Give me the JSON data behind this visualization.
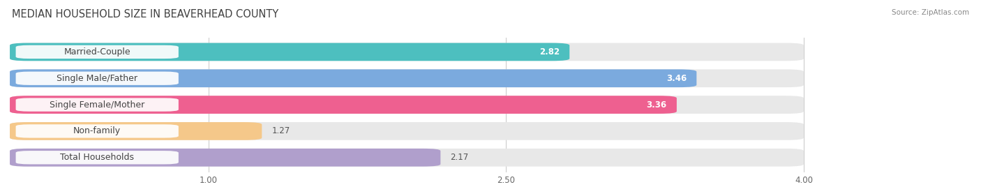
{
  "title": "MEDIAN HOUSEHOLD SIZE IN BEAVERHEAD COUNTY",
  "source": "Source: ZipAtlas.com",
  "categories": [
    "Married-Couple",
    "Single Male/Father",
    "Single Female/Mother",
    "Non-family",
    "Total Households"
  ],
  "values": [
    2.82,
    3.46,
    3.36,
    1.27,
    2.17
  ],
  "bar_colors": [
    "#4DBFBF",
    "#7BAADE",
    "#EE6090",
    "#F5C88A",
    "#B09FCC"
  ],
  "value_labels": [
    "2.82",
    "3.46",
    "3.36",
    "1.27",
    "2.17"
  ],
  "xlim": [
    0,
    4.3
  ],
  "xmin": 0,
  "xmax": 4.0,
  "xticks": [
    1.0,
    2.5,
    4.0
  ],
  "xtick_labels": [
    "1.00",
    "2.50",
    "4.00"
  ],
  "title_fontsize": 10.5,
  "label_fontsize": 9,
  "value_fontsize": 8.5,
  "bg_color": "#f5f5f5",
  "row_bg_color": "#ececec",
  "bar_row_bg": "#e8e8e8"
}
